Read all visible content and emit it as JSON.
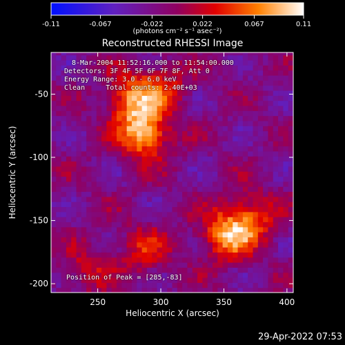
{
  "chart_data": {
    "type": "heatmap",
    "title": "Reconstructed RHESSI Image",
    "xlabel": "Heliocentric X (arcsec)",
    "ylabel": "Heliocentric Y (arcsec)",
    "xlim": [
      213,
      405
    ],
    "ylim": [
      -207,
      -17
    ],
    "x_ticks": [
      "250",
      "300",
      "350",
      "400"
    ],
    "y_ticks": [
      "-50",
      "-100",
      "-150",
      "-200"
    ],
    "colorbar": {
      "ticks": [
        "-0.11",
        "-0.067",
        "-0.022",
        "0.022",
        "0.067",
        "0.11"
      ],
      "range": [
        -0.11,
        0.11
      ],
      "unit_label": "(photons cm⁻² s⁻¹ asec⁻²)"
    },
    "annotations": {
      "time": "8-Mar-2004 11:52:16.000 to 11:54:00.000",
      "detectors": "Detectors: 3F 4F 5F 6F 7F 8F, Att 0",
      "energy": "Energy Range: 3.0 - 6.0 keV",
      "clean": "Clean     Total counts: 2.40E+03",
      "peak": "Position of Peak = [285,-83]"
    },
    "sources": [
      {
        "x": 285,
        "y": -83,
        "peak": 0.11
      },
      {
        "x": 275,
        "y": -55,
        "peak": 0.085
      },
      {
        "x": 300,
        "y": -45,
        "peak": 0.05
      },
      {
        "x": 350,
        "y": -163,
        "peak": 0.09
      },
      {
        "x": 370,
        "y": -150,
        "peak": 0.07
      },
      {
        "x": 285,
        "y": -175,
        "peak": 0.05
      },
      {
        "x": 240,
        "y": -190,
        "peak": 0.04
      }
    ],
    "colors": {
      "negative": "#3520d0",
      "zero": "#c0107a",
      "positive": "#ffff80"
    }
  },
  "footer": {
    "date": "29-Apr-2022 07:53"
  }
}
